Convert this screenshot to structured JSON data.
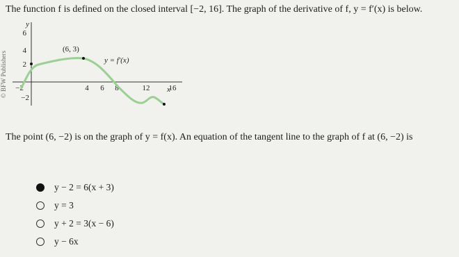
{
  "question": {
    "stem": "The function f is defined on the closed interval [−2, 16]. The graph of the derivative of f, y = f′(x) is below.",
    "watermark": "© BFW Publishers",
    "graph": {
      "y_axis_label": "y",
      "x_axis_label": "x",
      "y_tick_labels": [
        "6",
        "4",
        "2",
        "−2"
      ],
      "x_tick_labels": [
        "−2",
        "4",
        "6",
        "8",
        "12",
        "16"
      ],
      "point_label": "(6, 3)",
      "curve_label": "y = f′(x)"
    },
    "prompt": "The point (6, −2) is on the graph of y = f(x). An equation of the tangent line to the graph of f at (6, −2) is",
    "options": [
      "y − 2 = 6(x + 3)",
      "y = 3",
      "y + 2 = 3(x − 6)",
      "y − 6x"
    ],
    "selected": 0
  }
}
